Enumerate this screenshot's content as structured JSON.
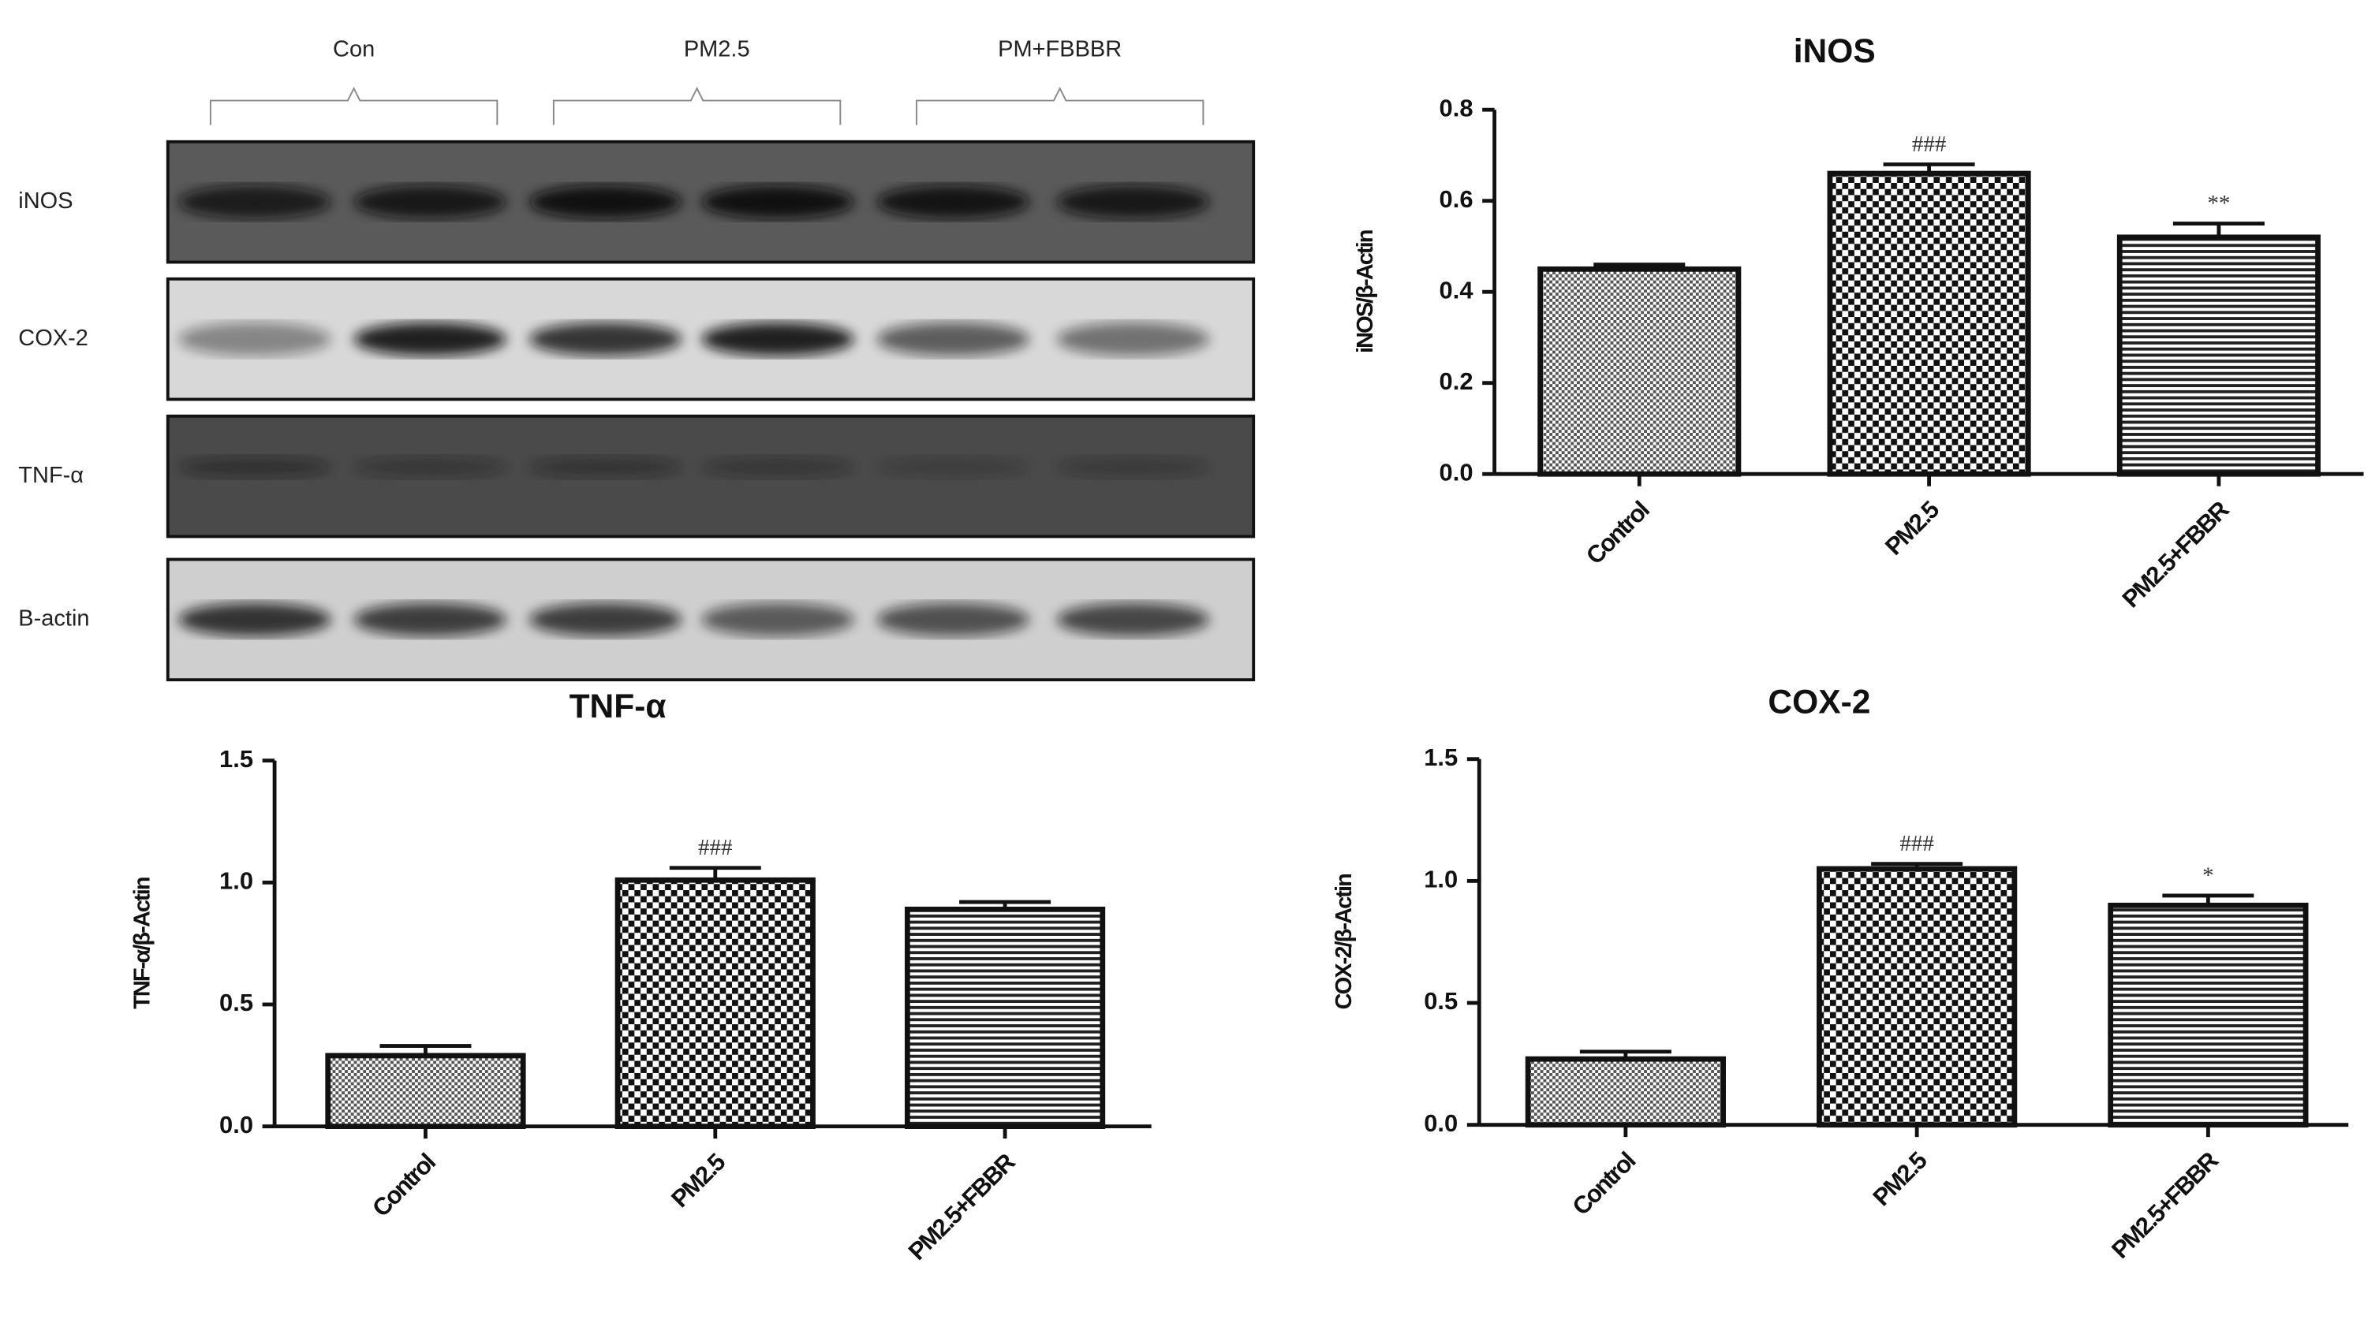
{
  "blot": {
    "groups": [
      "Con",
      "PM2.5",
      "PM+FBBBR"
    ],
    "rows": [
      "iNOS",
      "COX-2",
      "TNF-α",
      "B-actin"
    ]
  },
  "chart_data": [
    {
      "type": "bar",
      "title": "iNOS",
      "ylabel": "iNOS/β-Actin",
      "categories": [
        "Control",
        "PM2.5",
        "PM2.5+FBBR"
      ],
      "values": [
        0.45,
        0.66,
        0.52
      ],
      "errors": [
        0.01,
        0.02,
        0.03
      ],
      "annotations": [
        null,
        "###",
        "**"
      ],
      "ylim": [
        0,
        0.8
      ],
      "yticks": [
        {
          "value": 0,
          "label": "0.0"
        },
        0.2,
        0.4,
        0.6,
        0.8
      ]
    },
    {
      "type": "bar",
      "title": "TNF-α",
      "ylabel": "TNF-α/β-Actin",
      "categories": [
        "Control",
        "PM2.5",
        "PM2.5+FBBR"
      ],
      "values": [
        0.29,
        1.01,
        0.89
      ],
      "errors": [
        0.04,
        0.05,
        0.03
      ],
      "annotations": [
        null,
        "###",
        null
      ],
      "ylim": [
        0,
        1.5
      ],
      "yticks": [
        {
          "value": 0,
          "label": "0.0"
        },
        0.5,
        {
          "value": 1,
          "label": "1.0"
        },
        1.5
      ]
    },
    {
      "type": "bar",
      "title": "COX-2",
      "ylabel": "COX-2/β-Actin",
      "categories": [
        "Control",
        "PM2.5",
        "PM2.5+FBBR"
      ],
      "values": [
        0.27,
        1.05,
        0.9
      ],
      "errors": [
        0.03,
        0.02,
        0.04
      ],
      "annotations": [
        null,
        "###",
        "*"
      ],
      "ylim": [
        0,
        1.5
      ],
      "yticks": [
        {
          "value": 0,
          "label": "0.0"
        },
        0.5,
        {
          "value": 1,
          "label": "1.0"
        },
        1.5
      ]
    }
  ]
}
